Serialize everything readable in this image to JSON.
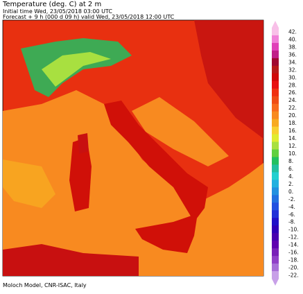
{
  "header": {
    "title": "Temperature (deg. C) at 2 m",
    "initial_time": "Initial time  Wed, 23/05/2018  03:00 UTC",
    "forecast": "Forecast +   9 h  (000 d 09 h)  valid Wed, 23/05/2018 12:00 UTC"
  },
  "footer": "Moloch Model, CNR-ISAC, Italy",
  "colorbar": {
    "ticks": [
      {
        "value": 42,
        "label": "42."
      },
      {
        "value": 40,
        "label": "40."
      },
      {
        "value": 38,
        "label": "38."
      },
      {
        "value": 36,
        "label": "36."
      },
      {
        "value": 34,
        "label": "34."
      },
      {
        "value": 32,
        "label": "32."
      },
      {
        "value": 30,
        "label": "30."
      },
      {
        "value": 28,
        "label": "28."
      },
      {
        "value": 26,
        "label": "26."
      },
      {
        "value": 24,
        "label": "24."
      },
      {
        "value": 22,
        "label": "22."
      },
      {
        "value": 20,
        "label": "20."
      },
      {
        "value": 18,
        "label": "18."
      },
      {
        "value": 16,
        "label": "16."
      },
      {
        "value": 14,
        "label": "14."
      },
      {
        "value": 12,
        "label": "12."
      },
      {
        "value": 10,
        "label": "10."
      },
      {
        "value": 8,
        "label": "8."
      },
      {
        "value": 6,
        "label": "6."
      },
      {
        "value": 4,
        "label": "4."
      },
      {
        "value": 2,
        "label": "2."
      },
      {
        "value": 0,
        "label": "0."
      },
      {
        "value": -2,
        "label": "-2."
      },
      {
        "value": -4,
        "label": "-4."
      },
      {
        "value": -6,
        "label": "-6."
      },
      {
        "value": -8,
        "label": "-8."
      },
      {
        "value": -10,
        "label": "-10."
      },
      {
        "value": -12,
        "label": "-12."
      },
      {
        "value": -14,
        "label": "-14."
      },
      {
        "value": -16,
        "label": "-16."
      },
      {
        "value": -18,
        "label": "-18."
      },
      {
        "value": -20,
        "label": "-20."
      },
      {
        "value": -22,
        "label": "-22."
      }
    ],
    "colors": [
      "#f8c0e8",
      "#f080d8",
      "#e040b8",
      "#c02088",
      "#a00830",
      "#b81818",
      "#d00808",
      "#e81010",
      "#f03010",
      "#f04c14",
      "#f86a1c",
      "#f88a20",
      "#f8aa20",
      "#f8d030",
      "#e0ec30",
      "#a8e040",
      "#60d040",
      "#20c060",
      "#20c0a0",
      "#20d0d0",
      "#20b0e0",
      "#2090e0",
      "#2070e0",
      "#2050e0",
      "#2030d8",
      "#2010c8",
      "#3000b8",
      "#4800b0",
      "#6000b0",
      "#7820b8",
      "#9040c8",
      "#a870d8",
      "#c8a0e8"
    ]
  }
}
